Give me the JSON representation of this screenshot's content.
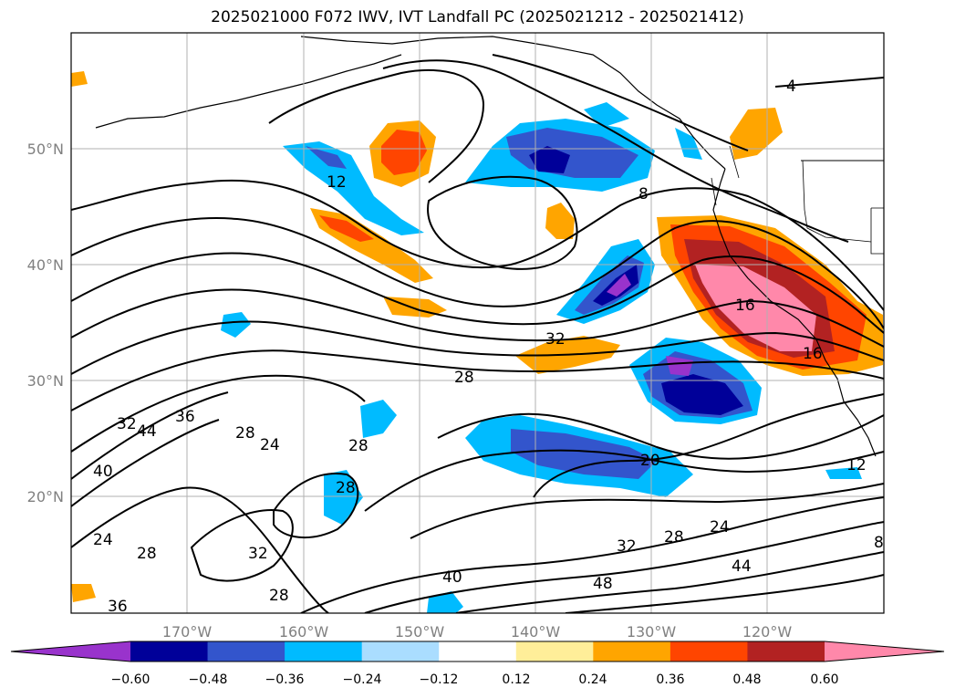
{
  "title": "2025021000 F072 IWV, IVT Landfall PC (2025021212 - 2025021412)",
  "map": {
    "lon_ticks": [
      "170°W",
      "160°W",
      "150°W",
      "140°W",
      "130°W",
      "120°W"
    ],
    "lat_ticks": [
      "50°N",
      "40°N",
      "30°N",
      "20°N"
    ],
    "grid": "on",
    "contour_labels": [
      "4",
      "8",
      "12",
      "16",
      "16",
      "20",
      "24",
      "24",
      "24",
      "28",
      "28",
      "28",
      "28",
      "28",
      "28",
      "28",
      "32",
      "32",
      "32",
      "32",
      "36",
      "36",
      "40",
      "40",
      "44",
      "44",
      "48",
      "12",
      "8"
    ]
  },
  "colorbar": {
    "ticks": [
      "−0.60",
      "−0.48",
      "−0.36",
      "−0.24",
      "−0.12",
      "0.12",
      "0.24",
      "0.36",
      "0.48",
      "0.60"
    ],
    "colors": [
      "#9933cc",
      "#000099",
      "#3355cc",
      "#00bbff",
      "#aaddff",
      "#ffffff",
      "#ffee99",
      "#ffa500",
      "#ff4500",
      "#b22222",
      "#ff88aa"
    ]
  }
}
